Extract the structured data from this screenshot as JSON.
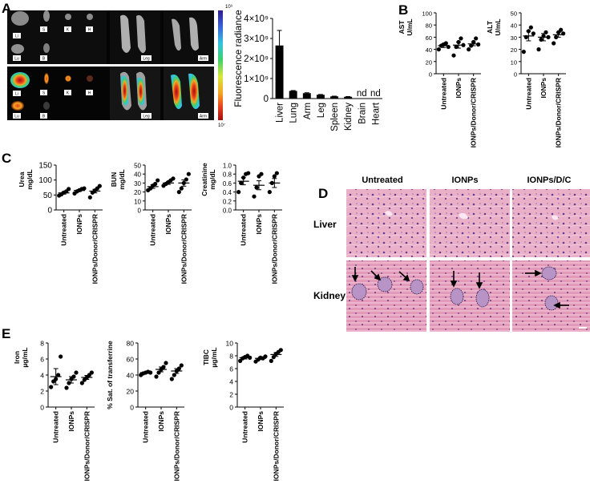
{
  "panel_labels": {
    "a": "A",
    "b": "B",
    "c": "C",
    "d": "D",
    "e": "E"
  },
  "imaging": {
    "row1_labels": {
      "li": "Li",
      "lu": "Lu",
      "s": "S",
      "b": "B",
      "k": "K",
      "h": "H",
      "leg": "Leg",
      "arm": "Arm"
    },
    "row2_labels": {
      "li": "Li",
      "lu": "Lu",
      "s": "S",
      "b": "B",
      "k": "K",
      "h": "H",
      "leg": "Leg",
      "arm": "Arm"
    },
    "scale_max": "10⁹",
    "scale_min": "10⁷",
    "colors": [
      "#2d1b8a",
      "#3a63d8",
      "#33c3e0",
      "#3fd06a",
      "#d6e83a",
      "#f5a623",
      "#e8401c",
      "#a01010"
    ]
  },
  "histology": {
    "col_headers": [
      "Untreated",
      "IONPs",
      "IONPs/D/C"
    ],
    "row_labels": [
      "Liver",
      "Kidney"
    ],
    "colors": {
      "liver": "#e9a3c0",
      "kidney": "#e7a2bd",
      "nuclei": "#5a3b8c"
    }
  },
  "chart_data": [
    {
      "id": "A",
      "type": "bar",
      "ylabel": "Fluorescence radiance",
      "categories": [
        "Liver",
        "Lung",
        "Arm",
        "Leg",
        "Spleen",
        "Kidney",
        "Brain",
        "Heart"
      ],
      "values": [
        2650000000,
        380000000,
        270000000,
        190000000,
        110000000,
        90000000,
        0,
        0
      ],
      "errors": [
        750000000,
        20000000,
        20000000,
        15000000,
        10000000,
        10000000,
        0,
        0
      ],
      "annotations": [
        "",
        "",
        "",
        "",
        "",
        "",
        "nd",
        "nd"
      ],
      "yticks": [
        0,
        1000000000,
        2000000000,
        3000000000,
        4000000000
      ],
      "ytick_labels": [
        "0",
        "1×10⁹",
        "2×10⁹",
        "3×10⁹",
        "4×10⁹"
      ],
      "ylim": [
        0,
        4000000000
      ]
    },
    {
      "id": "B-AST",
      "type": "scatter",
      "ylabel": "AST",
      "yunit": "U/mL",
      "categories": [
        "Untreated",
        "IONPs",
        "IONPs/Donor/CRISPR"
      ],
      "groups": [
        [
          40,
          46,
          48,
          50,
          44
        ],
        [
          30,
          44,
          52,
          58,
          47
        ],
        [
          40,
          46,
          52,
          58,
          48
        ]
      ],
      "means": [
        46,
        47,
        49
      ],
      "sems": [
        3,
        5,
        3
      ],
      "yticks": [
        0,
        20,
        40,
        60,
        80,
        100
      ],
      "ylim": [
        0,
        100
      ]
    },
    {
      "id": "B-ALT",
      "type": "scatter",
      "ylabel": "ALT",
      "yunit": "U/mL",
      "categories": [
        "Untreated",
        "IONPs",
        "IONPs/Donor/CRISPR"
      ],
      "groups": [
        [
          18,
          30,
          35,
          38,
          33
        ],
        [
          20,
          28,
          31,
          34,
          30
        ],
        [
          25,
          30,
          34,
          36,
          33
        ]
      ],
      "means": [
        31,
        30,
        32
      ],
      "sems": [
        4,
        3,
        2
      ],
      "yticks": [
        0,
        10,
        20,
        30,
        40,
        50
      ],
      "ylim": [
        0,
        50
      ]
    },
    {
      "id": "C-Urea",
      "type": "scatter",
      "ylabel": "Urea",
      "yunit": "mg/dL",
      "categories": [
        "Untreated",
        "IONPs",
        "IONPs/Donor/CRISPR"
      ],
      "groups": [
        [
          48,
          52,
          58,
          62,
          70
        ],
        [
          55,
          62,
          66,
          70,
          72
        ],
        [
          42,
          58,
          65,
          72,
          80
        ]
      ],
      "means": [
        57,
        65,
        63
      ],
      "sems": [
        4,
        3,
        6
      ],
      "yticks": [
        0,
        50,
        100,
        150
      ],
      "ylim": [
        0,
        150
      ]
    },
    {
      "id": "C-BUN",
      "type": "scatter",
      "ylabel": "BUN",
      "yunit": "mg/dL",
      "categories": [
        "Untreated",
        "IONPs",
        "IONPs/Donor/CRISPR"
      ],
      "groups": [
        [
          22,
          24,
          27,
          29,
          33
        ],
        [
          27,
          29,
          31,
          33,
          35
        ],
        [
          20,
          24,
          30,
          34,
          40
        ]
      ],
      "means": [
        26,
        30,
        30
      ],
      "sems": [
        2,
        1.5,
        3.5
      ],
      "yticks": [
        0,
        10,
        20,
        30,
        40,
        50
      ],
      "ylim": [
        0,
        50
      ]
    },
    {
      "id": "C-Creatinine",
      "type": "scatter",
      "ylabel": "Creatinine",
      "yunit": "mg/dL",
      "categories": [
        "Untreated",
        "IONPs",
        "IONPs/Donor/CRISPR"
      ],
      "groups": [
        [
          0.4,
          0.6,
          0.72,
          0.8,
          0.82
        ],
        [
          0.3,
          0.5,
          0.75,
          0.8
        ],
        [
          0.4,
          0.6,
          0.75,
          0.82
        ]
      ],
      "means": [
        0.64,
        0.55,
        0.6
      ],
      "sems": [
        0.08,
        0.1,
        0.1
      ],
      "yticks": [
        0,
        0.2,
        0.4,
        0.6,
        0.8,
        1.0
      ],
      "ytick_labels": [
        "0.0",
        "0.2",
        "0.4",
        "0.6",
        "0.8",
        "1.0"
      ],
      "ylim": [
        0,
        1.0
      ]
    },
    {
      "id": "E-Iron",
      "type": "scatter",
      "ylabel": "Iron",
      "yunit": "µg/mL",
      "categories": [
        "Untreated",
        "IONPs",
        "IONPs/Donor/CRISPR"
      ],
      "groups": [
        [
          2.5,
          3.2,
          3.5,
          4.0,
          6.3
        ],
        [
          2.4,
          3.0,
          3.5,
          3.8,
          4.3
        ],
        [
          3.0,
          3.4,
          3.7,
          4.0,
          4.3
        ]
      ],
      "means": [
        3.8,
        3.4,
        3.7
      ],
      "sems": [
        1.0,
        0.4,
        0.25
      ],
      "yticks": [
        0,
        2,
        4,
        6,
        8
      ],
      "ylim": [
        0,
        8
      ]
    },
    {
      "id": "E-Sat",
      "type": "scatter",
      "ylabel": "% Sat. of transferrine",
      "categories": [
        "Untreated",
        "IONPs",
        "IONPs/Donor/CRISPR"
      ],
      "groups": [
        [
          40,
          42,
          43,
          44,
          43
        ],
        [
          38,
          43,
          47,
          50,
          55
        ],
        [
          35,
          40,
          45,
          48,
          52
        ]
      ],
      "means": [
        43,
        47,
        45
      ],
      "sems": [
        1,
        3,
        3
      ],
      "yticks": [
        0,
        20,
        40,
        60,
        80
      ],
      "ylim": [
        0,
        80
      ]
    },
    {
      "id": "E-TIBC",
      "type": "scatter",
      "ylabel": "TIBC",
      "yunit": "µg/mL",
      "categories": [
        "Untreated",
        "IONPs",
        "IONPs/Donor/CRISPR"
      ],
      "groups": [
        [
          7.2,
          7.6,
          7.8,
          8.0,
          7.7
        ],
        [
          7.1,
          7.4,
          7.7,
          7.6,
          7.9
        ],
        [
          7.2,
          7.8,
          8.3,
          8.6,
          8.9
        ]
      ],
      "means": [
        7.7,
        7.6,
        8.2
      ],
      "sems": [
        0.2,
        0.2,
        0.3
      ],
      "yticks": [
        0,
        2,
        4,
        6,
        8,
        10
      ],
      "ylim": [
        0,
        10
      ]
    }
  ]
}
